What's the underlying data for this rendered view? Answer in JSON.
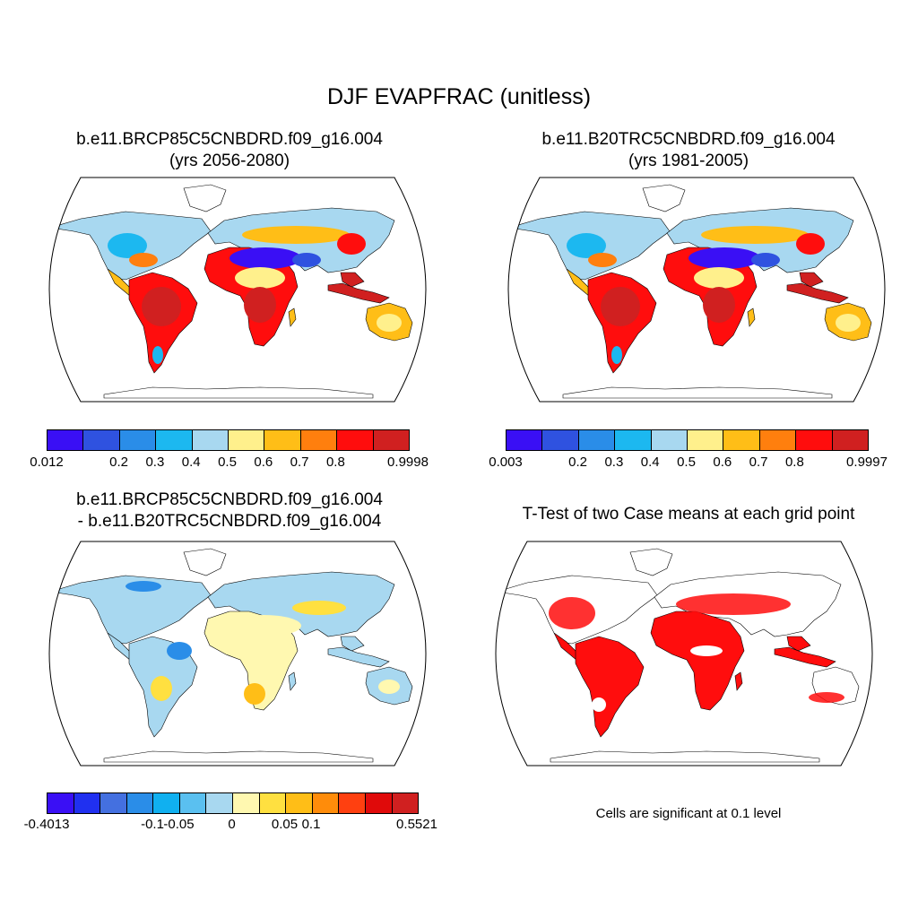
{
  "title": "DJF EVAPFRAC (unitless)",
  "panels": [
    {
      "id": "case1",
      "title_line1": "b.e11.BRCP85C5CNBDRD.f09_g16.004",
      "title_line2": "(yrs 2056-2080)",
      "colorbar": {
        "colors": [
          "#3a0ff5",
          "#2f52e0",
          "#2a8de8",
          "#1cb8f0",
          "#a8d8f0",
          "#fff08c",
          "#ffbe17",
          "#ff7f0e",
          "#ff0d0d",
          "#d02020"
        ],
        "tick_labels": [
          "0.012",
          "0.2",
          "0.3",
          "0.4",
          "0.5",
          "0.6",
          "0.7",
          "0.8",
          "0.9998"
        ]
      }
    },
    {
      "id": "case2",
      "title_line1": "b.e11.B20TRC5CNBDRD.f09_g16.004",
      "title_line2": "(yrs 1981-2005)",
      "colorbar": {
        "colors": [
          "#3a0ff5",
          "#2f52e0",
          "#2a8de8",
          "#1cb8f0",
          "#a8d8f0",
          "#fff08c",
          "#ffbe17",
          "#ff7f0e",
          "#ff0d0d",
          "#d02020"
        ],
        "tick_labels": [
          "0.003",
          "0.2",
          "0.3",
          "0.4",
          "0.5",
          "0.6",
          "0.7",
          "0.8",
          "0.9997"
        ]
      }
    },
    {
      "id": "difference",
      "title_line1": "b.e11.BRCP85C5CNBDRD.f09_g16.004",
      "title_line2": "- b.e11.B20TRC5CNBDRD.f09_g16.004",
      "colorbar": {
        "colors": [
          "#3a0ff5",
          "#2030f0",
          "#4470e0",
          "#2a8de8",
          "#10b0f0",
          "#5ac0f0",
          "#a8d8f0",
          "#fff8b0",
          "#ffe040",
          "#ffbe17",
          "#ff8c0a",
          "#ff4010",
          "#e00a0a",
          "#d02020"
        ],
        "tick_labels": [
          "-0.4013",
          "-0.1",
          "-0.05",
          "0",
          "0.05",
          "0.1",
          "0.5521"
        ]
      }
    },
    {
      "id": "ttest",
      "title_line1": "T-Test of two Case means at each grid point",
      "note": "Cells are significant at 0.1 level"
    }
  ]
}
